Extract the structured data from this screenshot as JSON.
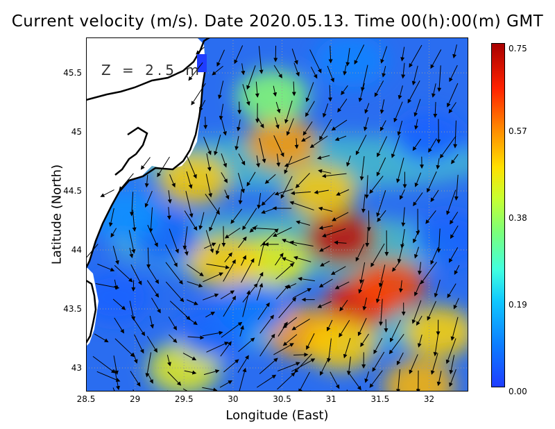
{
  "title": "Current velocity (m/s). Date 2020.05.13. Time 00(h):00(m) GMT",
  "depth_label": "Z = 2.5 m",
  "axes": {
    "xlabel": "Longitude (East)",
    "ylabel": "Latitude (North)",
    "xlim": [
      28.5,
      32.4
    ],
    "ylim": [
      42.8,
      45.8
    ],
    "xticks": [
      "28.5",
      "29",
      "29.5",
      "30",
      "30.5",
      "31",
      "31.5",
      "32"
    ],
    "yticks": [
      "43",
      "43.5",
      "44",
      "44.5",
      "45",
      "45.5"
    ]
  },
  "colorbar": {
    "ticks": [
      "0.00",
      "0.19",
      "0.38",
      "0.57",
      "0.75"
    ],
    "range": [
      0.0,
      0.75
    ]
  },
  "colors": {
    "low": "#1f3dff",
    "mid": "#40ffe0",
    "high": "#a80000",
    "land": "#ffffff",
    "coast": "#000000",
    "grid": "#9a9a9a"
  },
  "speed_field": [
    {
      "lon": 30.5,
      "lat": 44.9,
      "speed": 0.55
    },
    {
      "lon": 31.1,
      "lat": 44.1,
      "speed": 0.72
    },
    {
      "lon": 31.3,
      "lat": 43.55,
      "speed": 0.68
    },
    {
      "lon": 31.6,
      "lat": 43.7,
      "speed": 0.62
    },
    {
      "lon": 30.9,
      "lat": 44.5,
      "speed": 0.5
    },
    {
      "lon": 29.6,
      "lat": 44.6,
      "speed": 0.5
    },
    {
      "lon": 30.7,
      "lat": 43.3,
      "speed": 0.55
    },
    {
      "lon": 31.1,
      "lat": 43.2,
      "speed": 0.5
    },
    {
      "lon": 32.1,
      "lat": 43.3,
      "speed": 0.5
    },
    {
      "lon": 31.9,
      "lat": 42.85,
      "speed": 0.52
    },
    {
      "lon": 30.4,
      "lat": 43.9,
      "speed": 0.45
    },
    {
      "lon": 29.9,
      "lat": 43.9,
      "speed": 0.5
    },
    {
      "lon": 29.5,
      "lat": 43.0,
      "speed": 0.45
    },
    {
      "lon": 30.4,
      "lat": 45.3,
      "speed": 0.35
    },
    {
      "lon": 29.3,
      "lat": 44.1,
      "speed": 0.05
    },
    {
      "lon": 28.8,
      "lat": 43.6,
      "speed": 0.05
    },
    {
      "lon": 29.8,
      "lat": 43.3,
      "speed": 0.05
    },
    {
      "lon": 30.2,
      "lat": 43.5,
      "speed": 0.08
    },
    {
      "lon": 31.2,
      "lat": 45.6,
      "speed": 0.1
    },
    {
      "lon": 32.0,
      "lat": 44.95,
      "speed": 0.05
    },
    {
      "lon": 32.2,
      "lat": 44.1,
      "speed": 0.05
    },
    {
      "lon": 28.9,
      "lat": 44.3,
      "speed": 0.12
    }
  ]
}
